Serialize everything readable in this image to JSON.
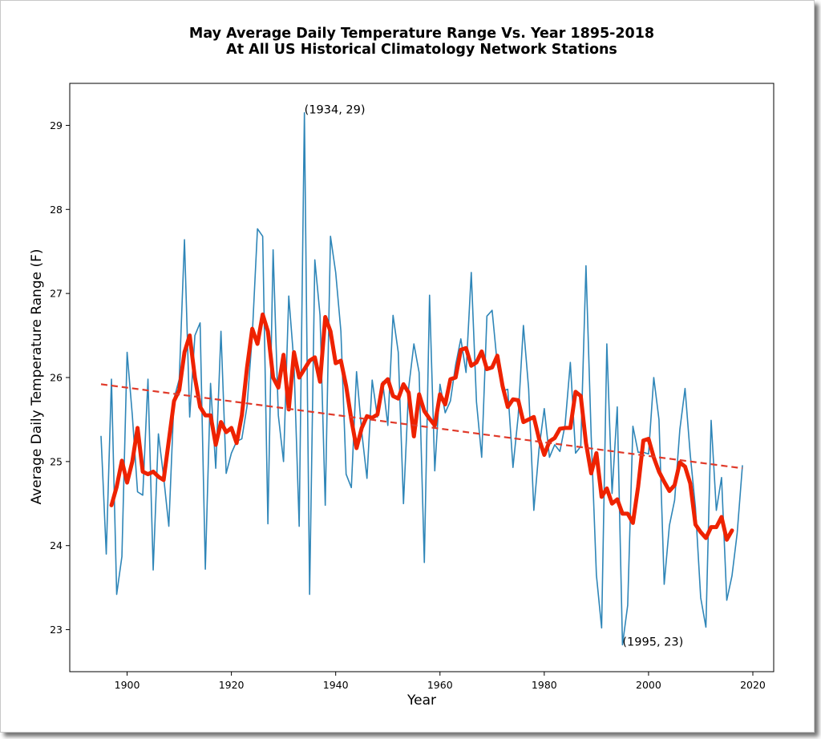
{
  "chart_data": {
    "type": "line",
    "title": "May Average Daily Temperature Range Vs. Year 1895-2018",
    "subtitle": "At All US Historical Climatology Network Stations",
    "xlabel": "Year",
    "ylabel": "Average Daily Temperature Range (F)",
    "xlim": [
      1889,
      2024
    ],
    "ylim": [
      22.5,
      29.5
    ],
    "x_ticks": [
      1900,
      1920,
      1940,
      1960,
      1980,
      2000,
      2020
    ],
    "y_ticks": [
      23,
      24,
      25,
      26,
      27,
      28,
      29
    ],
    "grid": false,
    "series": [
      {
        "role": "annual",
        "color": "#2f86b8",
        "x_start": 1895,
        "x_end": 2018,
        "values": [
          25.3,
          23.9,
          25.98,
          23.42,
          23.87,
          26.3,
          25.55,
          24.64,
          24.6,
          25.98,
          23.71,
          25.33,
          24.82,
          24.23,
          25.75,
          25.98,
          27.64,
          25.53,
          26.5,
          26.65,
          23.72,
          25.93,
          24.92,
          26.55,
          24.86,
          25.1,
          25.24,
          25.27,
          25.66,
          26.5,
          27.77,
          27.68,
          24.26,
          27.52,
          25.55,
          25.0,
          26.97,
          26.17,
          24.23,
          29.15,
          23.42,
          27.4,
          26.74,
          24.48,
          27.68,
          27.25,
          26.55,
          24.85,
          24.69,
          26.07,
          25.35,
          24.8,
          25.97,
          25.53,
          25.95,
          25.43,
          26.74,
          26.3,
          24.5,
          25.88,
          26.4,
          26.06,
          23.8,
          26.98,
          24.89,
          25.92,
          25.58,
          25.72,
          26.15,
          26.46,
          26.06,
          27.25,
          25.71,
          25.05,
          26.73,
          26.8,
          26.15,
          25.84,
          25.86,
          24.93,
          25.54,
          26.62,
          25.87,
          24.42,
          25.15,
          25.63,
          25.05,
          25.2,
          25.12,
          25.44,
          26.18,
          25.1,
          25.18,
          27.33,
          25.3,
          23.65,
          23.02,
          26.4,
          24.62,
          25.65,
          22.82,
          23.29,
          25.42,
          25.11,
          25.11,
          25.09,
          26.0,
          25.5,
          23.54,
          24.24,
          24.54,
          25.38,
          25.87,
          25.08,
          24.45,
          23.38,
          23.03,
          25.49,
          24.42,
          24.81,
          23.35,
          23.64,
          24.15,
          24.95
        ]
      },
      {
        "role": "smoothed",
        "color": "#ee2200",
        "x_start": 1897,
        "x_end": 2016,
        "values": [
          24.48,
          24.7,
          25.01,
          24.75,
          25.0,
          25.4,
          24.88,
          24.85,
          24.88,
          24.82,
          24.78,
          25.25,
          25.72,
          25.85,
          26.3,
          26.5,
          26.0,
          25.65,
          25.55,
          25.55,
          25.2,
          25.47,
          25.35,
          25.4,
          25.22,
          25.55,
          26.12,
          26.58,
          26.4,
          26.75,
          26.55,
          26.0,
          25.88,
          26.27,
          25.62,
          26.3,
          26.0,
          26.1,
          26.2,
          26.24,
          25.95,
          26.72,
          26.55,
          26.17,
          26.2,
          25.9,
          25.5,
          25.16,
          25.4,
          25.54,
          25.52,
          25.56,
          25.92,
          25.98,
          25.78,
          25.75,
          25.92,
          25.82,
          25.3,
          25.8,
          25.6,
          25.51,
          25.43,
          25.8,
          25.68,
          25.98,
          26.0,
          26.33,
          26.35,
          26.14,
          26.18,
          26.31,
          26.1,
          26.12,
          26.26,
          25.9,
          25.65,
          25.74,
          25.73,
          25.47,
          25.5,
          25.53,
          25.27,
          25.08,
          25.24,
          25.28,
          25.39,
          25.4,
          25.4,
          25.83,
          25.78,
          25.22,
          24.86,
          25.1,
          24.58,
          24.68,
          24.5,
          24.55,
          24.38,
          24.38,
          24.27,
          24.7,
          25.25,
          25.27,
          25.05,
          24.88,
          24.76,
          24.65,
          24.72,
          24.99,
          24.94,
          24.74,
          24.25,
          24.16,
          24.09,
          24.22,
          24.22,
          24.34,
          24.07,
          24.18
        ]
      },
      {
        "role": "trend",
        "color": "#e03a2a",
        "x": [
          1895,
          2018
        ],
        "y": [
          25.92,
          24.92
        ]
      }
    ],
    "annotations": [
      {
        "text": "(1934, 29)",
        "x": 1934,
        "y": 29.15
      },
      {
        "text": "(1995, 23)",
        "x": 1995,
        "y": 22.82
      }
    ]
  }
}
